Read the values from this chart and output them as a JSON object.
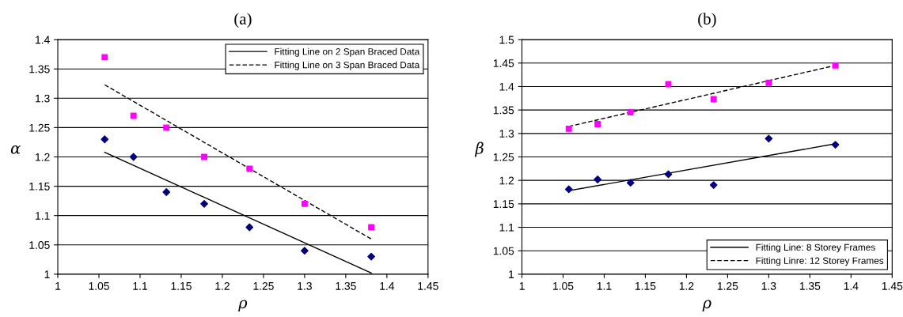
{
  "chart_data": [
    {
      "type": "scatter",
      "title": "(a)",
      "xlabel": "ρ",
      "ylabel": "α",
      "xlim": [
        1,
        1.45
      ],
      "ylim": [
        1,
        1.4
      ],
      "xticks": [
        1,
        1.05,
        1.1,
        1.15,
        1.2,
        1.25,
        1.3,
        1.35,
        1.4,
        1.45
      ],
      "yticks": [
        1,
        1.05,
        1.1,
        1.15,
        1.2,
        1.25,
        1.3,
        1.35,
        1.4
      ],
      "grid": "y",
      "legend": "top right",
      "series": [
        {
          "color": "#ff00ff",
          "marker": "square",
          "x": [
            1.057,
            1.092,
            1.132,
            1.178,
            1.233,
            1.3,
            1.381
          ],
          "values": [
            1.37,
            1.27,
            1.25,
            1.2,
            1.18,
            1.12,
            1.08
          ]
        },
        {
          "color": "#000080",
          "marker": "diamond",
          "x": [
            1.057,
            1.092,
            1.132,
            1.178,
            1.233,
            1.3,
            1.381
          ],
          "values": [
            1.23,
            1.2,
            1.14,
            1.12,
            1.08,
            1.04,
            1.03
          ]
        },
        {
          "type": "line",
          "name": "Fitting Line on 2 Span Braced Data",
          "color": "#000000",
          "line_style": "solid",
          "x": [
            1.057,
            1.381
          ],
          "values": [
            1.208,
            1.002
          ]
        },
        {
          "type": "line",
          "name": "Fitting Line on 3 Span Braced Data",
          "color": "#000000",
          "line_style": "dashed",
          "x": [
            1.057,
            1.381
          ],
          "values": [
            1.323,
            1.06
          ]
        }
      ]
    },
    {
      "type": "scatter",
      "title": "(b)",
      "xlabel": "ρ",
      "ylabel": "β",
      "xlim": [
        1,
        1.45
      ],
      "ylim": [
        1,
        1.5
      ],
      "xticks": [
        1,
        1.05,
        1.1,
        1.15,
        1.2,
        1.25,
        1.3,
        1.35,
        1.4,
        1.45
      ],
      "yticks": [
        1,
        1.05,
        1.1,
        1.15,
        1.2,
        1.25,
        1.3,
        1.35,
        1.4,
        1.45,
        1.5
      ],
      "grid": "y",
      "legend": "bottom right",
      "series": [
        {
          "color": "#ff00ff",
          "marker": "square",
          "x": [
            1.057,
            1.092,
            1.132,
            1.178,
            1.233,
            1.3,
            1.381
          ],
          "values": [
            1.31,
            1.32,
            1.345,
            1.405,
            1.373,
            1.408,
            1.445
          ]
        },
        {
          "color": "#000080",
          "marker": "diamond",
          "x": [
            1.057,
            1.092,
            1.132,
            1.178,
            1.233,
            1.3,
            1.381
          ],
          "values": [
            1.181,
            1.202,
            1.195,
            1.213,
            1.19,
            1.289,
            1.276
          ]
        },
        {
          "type": "line",
          "name": "Fitting Line: 8 Storey Frames",
          "color": "#000000",
          "line_style": "solid",
          "x": [
            1.057,
            1.381
          ],
          "values": [
            1.178,
            1.278
          ]
        },
        {
          "type": "line",
          "name": "Fitting Linre: 12 Storey Frames",
          "color": "#000000",
          "line_style": "dashed",
          "x": [
            1.057,
            1.381
          ],
          "values": [
            1.315,
            1.445
          ]
        }
      ]
    }
  ]
}
